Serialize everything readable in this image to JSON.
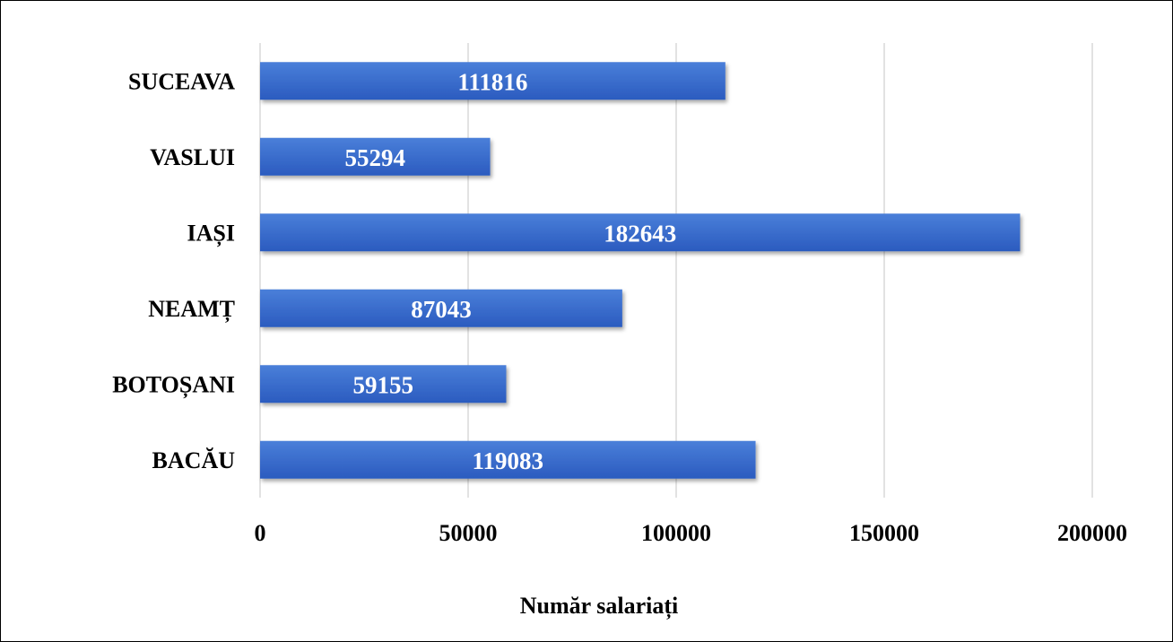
{
  "chart_data": {
    "type": "bar",
    "orientation": "horizontal",
    "categories": [
      "SUCEAVA",
      "VASLUI",
      "IAȘI",
      "NEAMȚ",
      "BOTOȘANI",
      "BACĂU"
    ],
    "values": [
      111816,
      55294,
      182643,
      87043,
      59155,
      119083
    ],
    "data_labels": [
      "111816",
      "55294",
      "182643",
      "87043",
      "59155",
      "119083"
    ],
    "x_ticks": [
      "0",
      "50000",
      "100000",
      "150000",
      "200000"
    ],
    "x_tick_values": [
      0,
      50000,
      100000,
      150000,
      200000
    ],
    "xlim": [
      0,
      200000
    ],
    "xlabel": "Număr salariați",
    "ylabel": "",
    "title": "",
    "grid": "vertical",
    "legend": "none",
    "colors": {
      "bar_top": "#4a7fd9",
      "bar_bottom": "#2b5bbf",
      "gridline": "#d9d9d9",
      "data_label": "#ffffff"
    }
  }
}
